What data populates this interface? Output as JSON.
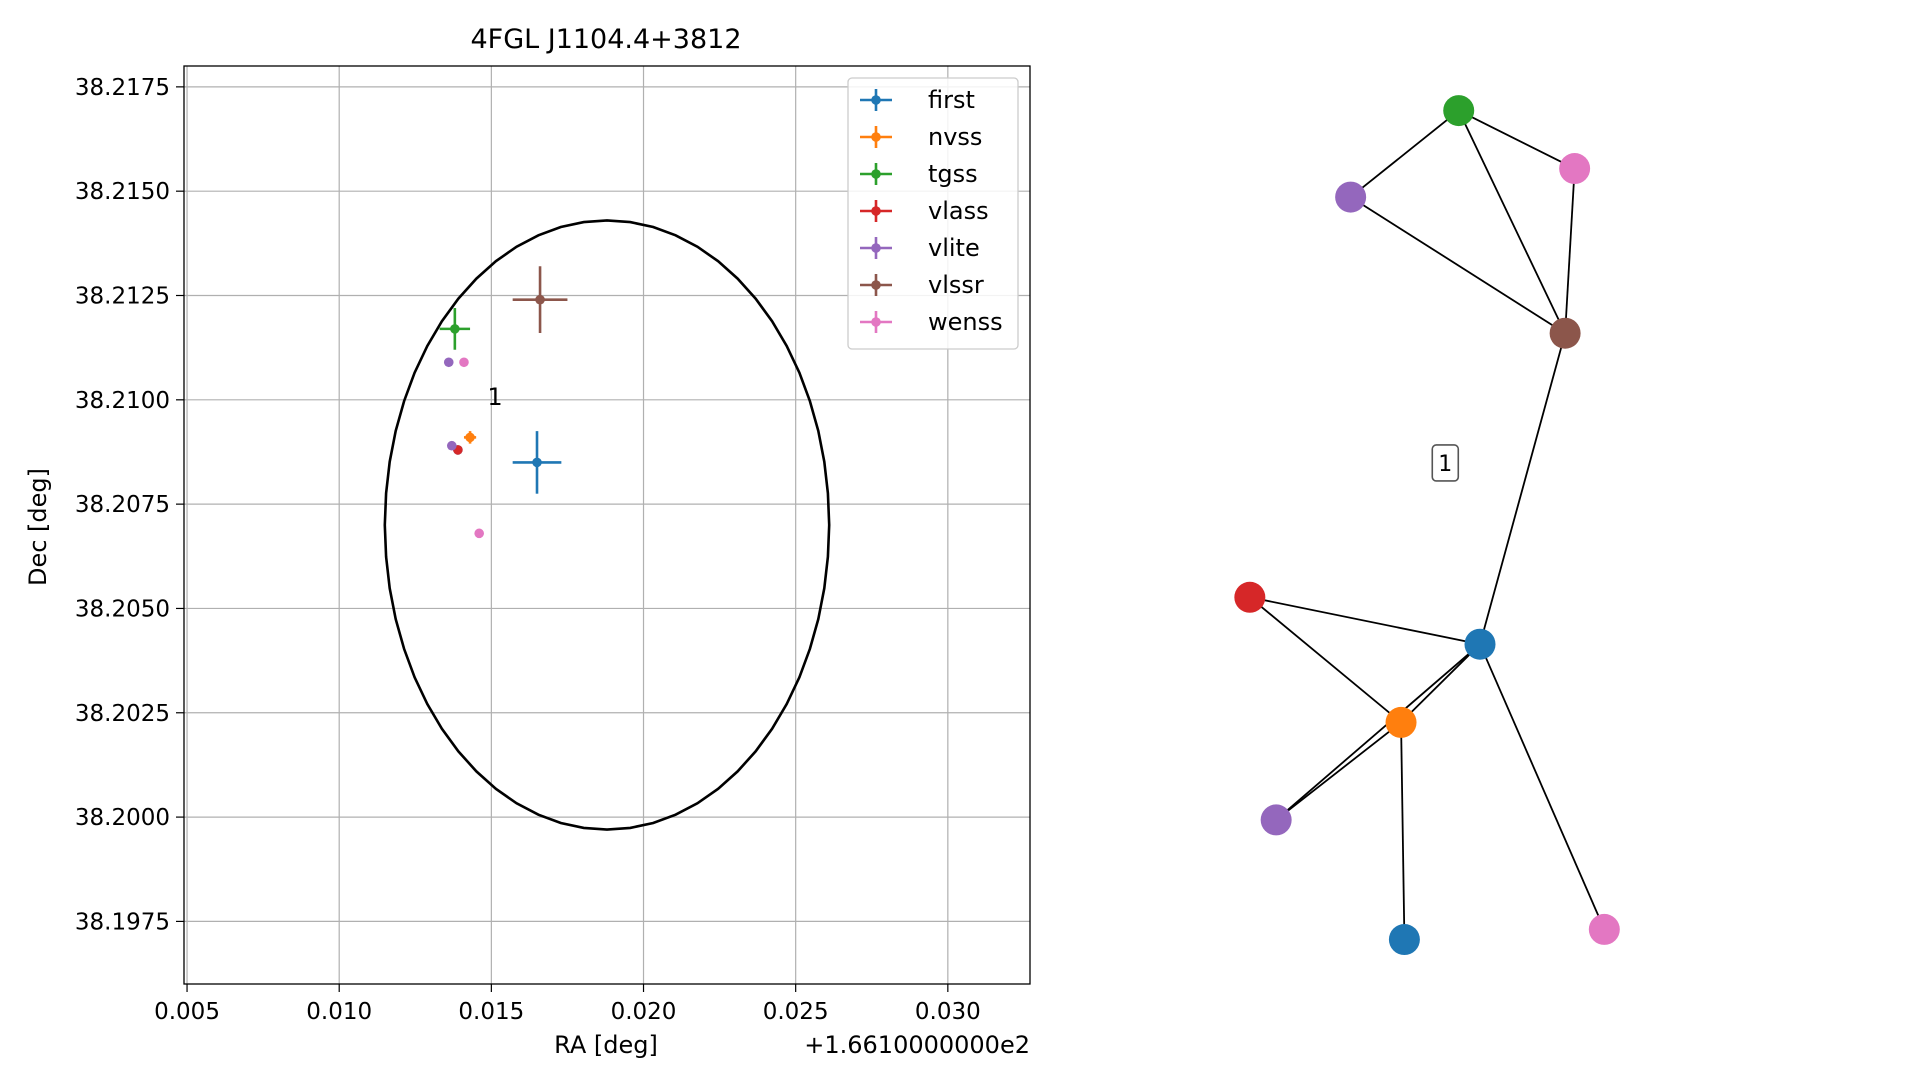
{
  "chart_data": [
    {
      "type": "scatter",
      "title": "4FGL J1104.4+3812",
      "xlabel": "RA [deg]",
      "ylabel": "Dec [deg]",
      "x_offset_label": "+1.6610000000e2",
      "xlim": [
        0.0049,
        0.0327
      ],
      "ylim": [
        38.196,
        38.218
      ],
      "x_ticks": [
        0.005,
        0.01,
        0.015,
        0.02,
        0.025,
        0.03
      ],
      "x_tick_labels": [
        "0.005",
        "0.010",
        "0.015",
        "0.020",
        "0.025",
        "0.030"
      ],
      "y_ticks": [
        38.1975,
        38.2,
        38.2025,
        38.205,
        38.2075,
        38.21,
        38.2125,
        38.215,
        38.2175
      ],
      "y_tick_labels": [
        "38.1975",
        "38.2000",
        "38.2025",
        "38.2050",
        "38.2075",
        "38.2100",
        "38.2125",
        "38.2150",
        "38.2175"
      ],
      "grid": true,
      "legend_position": "top-right",
      "circle": {
        "center": [
          0.0188,
          38.207
        ],
        "radius": 0.0073,
        "color": "#000000"
      },
      "annotations": [
        {
          "text": "1",
          "x": 0.015,
          "y": 38.21
        }
      ],
      "series": [
        {
          "name": "first",
          "color": "#1f77b4",
          "points": [
            {
              "x": 0.0165,
              "y": 38.2085,
              "xerr": 0.0008,
              "yerr": 0.00075
            },
            {
              "x": 0.0139,
              "y": 38.2088,
              "xerr": 0,
              "yerr": 0
            }
          ]
        },
        {
          "name": "nvss",
          "color": "#ff7f0e",
          "points": [
            {
              "x": 0.0143,
              "y": 38.2091,
              "xerr": 0.0002,
              "yerr": 0.00015
            }
          ]
        },
        {
          "name": "tgss",
          "color": "#2ca02c",
          "points": [
            {
              "x": 0.0138,
              "y": 38.2117,
              "xerr": 0.0005,
              "yerr": 0.0005
            }
          ]
        },
        {
          "name": "vlass",
          "color": "#d62728",
          "points": [
            {
              "x": 0.0139,
              "y": 38.2088,
              "xerr": 0,
              "yerr": 0
            }
          ]
        },
        {
          "name": "vlite",
          "color": "#9467bd",
          "points": [
            {
              "x": 0.0136,
              "y": 38.2109,
              "xerr": 0,
              "yerr": 0
            },
            {
              "x": 0.0137,
              "y": 38.2089,
              "xerr": 0,
              "yerr": 0
            }
          ]
        },
        {
          "name": "vlssr",
          "color": "#8c564b",
          "points": [
            {
              "x": 0.0166,
              "y": 38.2124,
              "xerr": 0.0009,
              "yerr": 0.0008
            }
          ]
        },
        {
          "name": "wenss",
          "color": "#e377c2",
          "points": [
            {
              "x": 0.0141,
              "y": 38.2109,
              "xerr": 0,
              "yerr": 0
            },
            {
              "x": 0.0146,
              "y": 38.2068,
              "xerr": 0,
              "yerr": 0
            }
          ]
        }
      ]
    },
    {
      "type": "network",
      "nodes": [
        {
          "id": "n-green",
          "color": "#2ca02c",
          "x": 0.462,
          "y": 0.055
        },
        {
          "id": "n-pink-top",
          "color": "#e377c2",
          "x": 0.669,
          "y": 0.118
        },
        {
          "id": "n-purple-top",
          "color": "#9467bd",
          "x": 0.269,
          "y": 0.149
        },
        {
          "id": "n-brown",
          "color": "#8c564b",
          "x": 0.652,
          "y": 0.297
        },
        {
          "id": "n-red",
          "color": "#d62728",
          "x": 0.089,
          "y": 0.584
        },
        {
          "id": "n-blue-hub",
          "color": "#1f77b4",
          "x": 0.5,
          "y": 0.635
        },
        {
          "id": "n-orange",
          "color": "#ff7f0e",
          "x": 0.359,
          "y": 0.72
        },
        {
          "id": "n-purple-bottom",
          "color": "#9467bd",
          "x": 0.136,
          "y": 0.826
        },
        {
          "id": "n-blue-bottom",
          "color": "#1f77b4",
          "x": 0.365,
          "y": 0.956
        },
        {
          "id": "n-pink-bottom",
          "color": "#e377c2",
          "x": 0.722,
          "y": 0.945
        }
      ],
      "edges": [
        [
          "n-green",
          "n-pink-top"
        ],
        [
          "n-green",
          "n-purple-top"
        ],
        [
          "n-green",
          "n-brown"
        ],
        [
          "n-purple-top",
          "n-brown"
        ],
        [
          "n-pink-top",
          "n-brown"
        ],
        [
          "n-brown",
          "n-blue-hub"
        ],
        [
          "n-red",
          "n-blue-hub"
        ],
        [
          "n-red",
          "n-orange"
        ],
        [
          "n-blue-hub",
          "n-orange"
        ],
        [
          "n-blue-hub",
          "n-purple-bottom"
        ],
        [
          "n-orange",
          "n-purple-bottom"
        ],
        [
          "n-orange",
          "n-blue-bottom"
        ],
        [
          "n-blue-hub",
          "n-pink-bottom"
        ]
      ],
      "label": {
        "text": "1",
        "x": 0.438,
        "y": 0.438
      }
    }
  ]
}
